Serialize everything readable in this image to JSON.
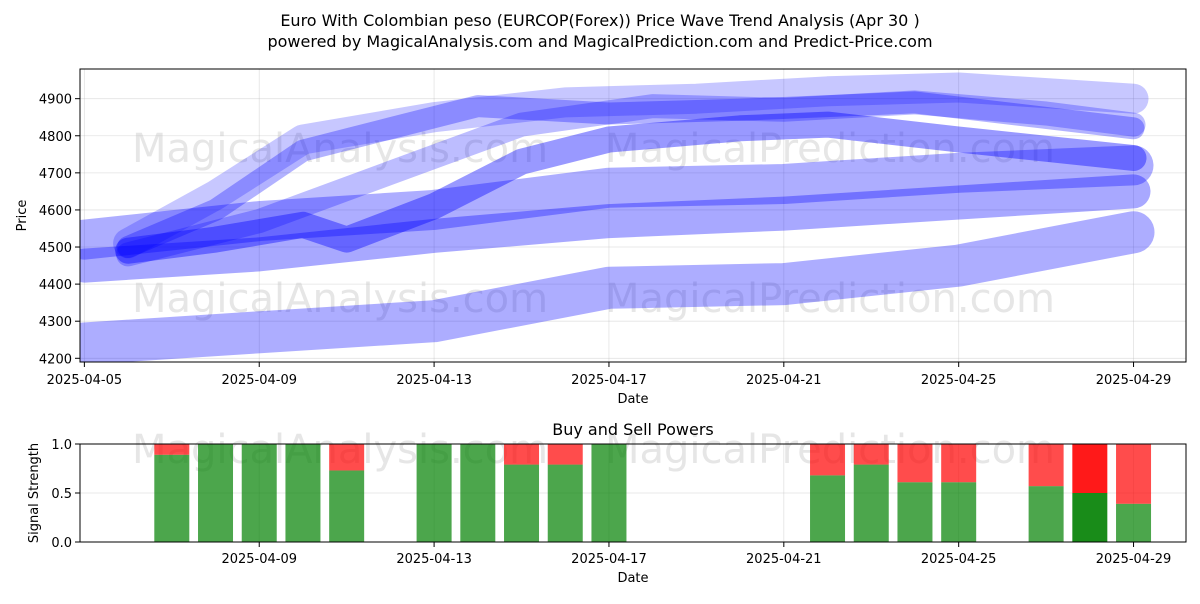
{
  "title_line1": "Euro With Colombian peso (EURCOP(Forex)) Price Wave Trend Analysis (Apr 30 )",
  "title_line2": "powered by MagicalAnalysis.com and MagicalPrediction.com and Predict-Price.com",
  "watermarks": [
    "MagicalAnalysis.com",
    "MagicalPrediction.com"
  ],
  "colors": {
    "wave": "#0000ff",
    "buy": "#008000",
    "sell": "#ff0000",
    "frame": "#000000"
  },
  "chart_data": [
    {
      "type": "area",
      "title": "",
      "xlabel": "Date",
      "ylabel": "Price",
      "x_ticks": [
        "2025-04-05",
        "2025-04-09",
        "2025-04-13",
        "2025-04-17",
        "2025-04-21",
        "2025-04-25",
        "2025-04-29"
      ],
      "y_ticks": [
        4200,
        4300,
        4400,
        4500,
        4600,
        4700,
        4800,
        4900
      ],
      "xlim": [
        "2025-04-05",
        "2025-04-30"
      ],
      "ylim": [
        4190,
        4980
      ],
      "grid": true,
      "series": [
        {
          "x": [
            "2025-04-05",
            "2025-04-09",
            "2025-04-13",
            "2025-04-17",
            "2025-04-21",
            "2025-04-25",
            "2025-04-29"
          ],
          "values": [
            4240,
            4270,
            4300,
            4390,
            4400,
            4450,
            4540
          ]
        },
        {
          "x": [
            "2025-04-05",
            "2025-04-09",
            "2025-04-13",
            "2025-04-17",
            "2025-04-21",
            "2025-04-25",
            "2025-04-29"
          ],
          "values": [
            4450,
            4480,
            4530,
            4570,
            4590,
            4620,
            4650
          ]
        },
        {
          "x": [
            "2025-04-05",
            "2025-04-09",
            "2025-04-13",
            "2025-04-17",
            "2025-04-21",
            "2025-04-25",
            "2025-04-29"
          ],
          "values": [
            4520,
            4570,
            4600,
            4660,
            4670,
            4700,
            4720
          ]
        },
        {
          "x": [
            "2025-04-06",
            "2025-04-08",
            "2025-04-10",
            "2025-04-11",
            "2025-04-13",
            "2025-04-15",
            "2025-04-17",
            "2025-04-20",
            "2025-04-22",
            "2025-04-25",
            "2025-04-29"
          ],
          "values": [
            4490,
            4520,
            4560,
            4520,
            4610,
            4730,
            4790,
            4820,
            4830,
            4790,
            4740
          ]
        },
        {
          "x": [
            "2025-04-06",
            "2025-04-08",
            "2025-04-10",
            "2025-04-12",
            "2025-04-14",
            "2025-04-17",
            "2025-04-20",
            "2025-04-24",
            "2025-04-29"
          ],
          "values": [
            4500,
            4600,
            4760,
            4820,
            4880,
            4860,
            4870,
            4890,
            4820
          ]
        },
        {
          "x": [
            "2025-04-06",
            "2025-04-08",
            "2025-04-10",
            "2025-04-13",
            "2025-04-16",
            "2025-04-19",
            "2025-04-22",
            "2025-04-25",
            "2025-04-29"
          ],
          "values": [
            4510,
            4640,
            4790,
            4850,
            4890,
            4900,
            4920,
            4930,
            4900
          ]
        },
        {
          "x": [
            "2025-04-06",
            "2025-04-09",
            "2025-04-12",
            "2025-04-15",
            "2025-04-18",
            "2025-04-21",
            "2025-04-24",
            "2025-04-27",
            "2025-04-29"
          ],
          "values": [
            4480,
            4570,
            4700,
            4830,
            4880,
            4870,
            4890,
            4860,
            4830
          ]
        }
      ]
    },
    {
      "type": "bar",
      "title": "Buy and Sell Powers",
      "xlabel": "Date",
      "ylabel": "Signal Strength",
      "x_ticks": [
        "2025-04-09",
        "2025-04-13",
        "2025-04-17",
        "2025-04-21",
        "2025-04-25",
        "2025-04-29"
      ],
      "y_ticks": [
        "0.0",
        "0.5",
        "1.0"
      ],
      "xlim": [
        "2025-04-05",
        "2025-04-30"
      ],
      "ylim": [
        0,
        1
      ],
      "categories": [
        "2025-04-07",
        "2025-04-08",
        "2025-04-09",
        "2025-04-10",
        "2025-04-11",
        "2025-04-13",
        "2025-04-14",
        "2025-04-15",
        "2025-04-16",
        "2025-04-17",
        "2025-04-22",
        "2025-04-23",
        "2025-04-24",
        "2025-04-25",
        "2025-04-27",
        "2025-04-28",
        "2025-04-29"
      ],
      "series": [
        {
          "values": [
            0.89,
            1.0,
            1.0,
            1.0,
            0.73,
            1.0,
            1.0,
            0.79,
            0.79,
            1.0,
            0.68,
            0.79,
            0.61,
            0.61,
            0.57,
            0.5,
            0.39
          ]
        },
        {
          "values": [
            0.11,
            0.0,
            0.0,
            0.0,
            0.27,
            0.0,
            0.0,
            0.21,
            0.21,
            0.0,
            0.32,
            0.21,
            0.39,
            0.39,
            0.43,
            0.5,
            0.61
          ]
        }
      ]
    }
  ]
}
